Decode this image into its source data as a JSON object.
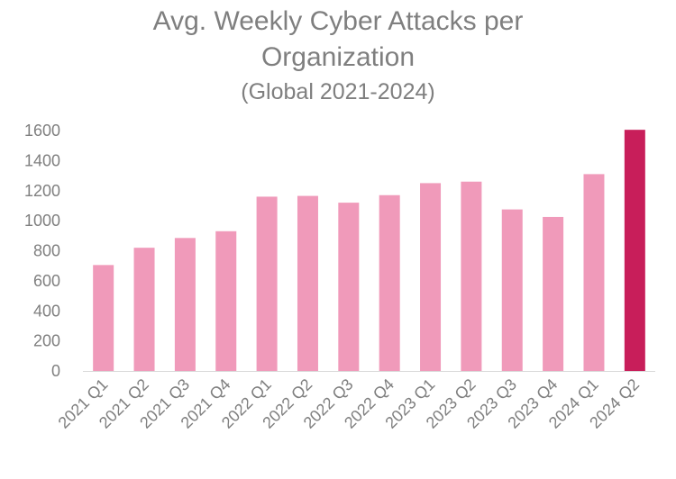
{
  "chart_data": {
    "type": "bar",
    "title_lines": [
      "Avg. Weekly Cyber Attacks per",
      "Organization"
    ],
    "subtitle": "(Global 2021-2024)",
    "categories": [
      "2021 Q1",
      "2021 Q2",
      "2021 Q3",
      "2021 Q4",
      "2022 Q1",
      "2022 Q2",
      "2022 Q3",
      "2022 Q4",
      "2023 Q1",
      "2023 Q2",
      "2023 Q3",
      "2023 Q4",
      "2024 Q1",
      "2024 Q2"
    ],
    "values": [
      705,
      820,
      885,
      930,
      1160,
      1165,
      1120,
      1170,
      1250,
      1260,
      1075,
      1025,
      1310,
      1605
    ],
    "ylim": [
      0,
      1600
    ],
    "yticks": [
      0,
      200,
      400,
      600,
      800,
      1000,
      1200,
      1400,
      1600
    ],
    "ytick_labels": [
      "0",
      "200",
      "400",
      "600",
      "800",
      "1000",
      "1200",
      "1400",
      "1600"
    ],
    "xlabel": "",
    "ylabel": "",
    "grid": false,
    "legend": "none",
    "highlight_index": 13,
    "colors": {
      "bar": "#f09aba",
      "highlight": "#c81e5a",
      "axis": "#d9d9d9",
      "text": "#7f7f7f"
    }
  }
}
